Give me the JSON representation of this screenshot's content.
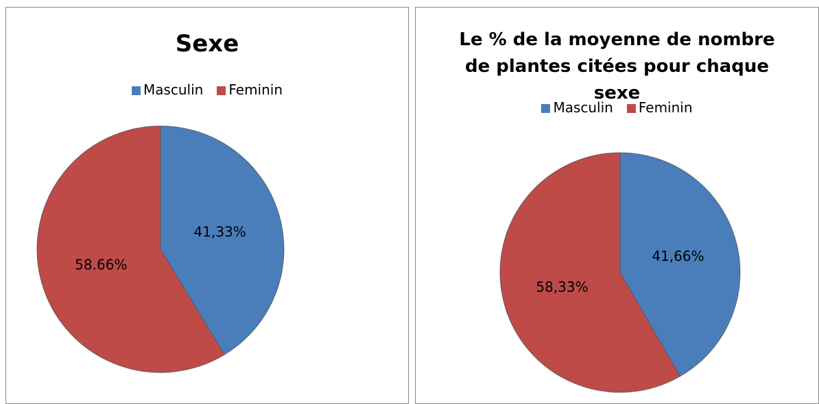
{
  "chart_data": [
    {
      "type": "pie",
      "title": "Sexe",
      "categories": [
        "Masculin",
        "Feminin"
      ],
      "values": [
        41.33,
        58.66
      ],
      "value_labels": [
        "41,33%",
        "58.66%"
      ],
      "colors": [
        "#4a7ebb",
        "#be4b48"
      ],
      "legend": "top"
    },
    {
      "type": "pie",
      "title": "Le % de la moyenne de nombre de plantes citées pour chaque sexe",
      "categories": [
        "Masculin",
        "Feminin"
      ],
      "values": [
        41.66,
        58.33
      ],
      "value_labels": [
        "41,66%",
        "58,33%"
      ],
      "colors": [
        "#4a7ebb",
        "#be4b48"
      ],
      "legend": "top"
    }
  ]
}
